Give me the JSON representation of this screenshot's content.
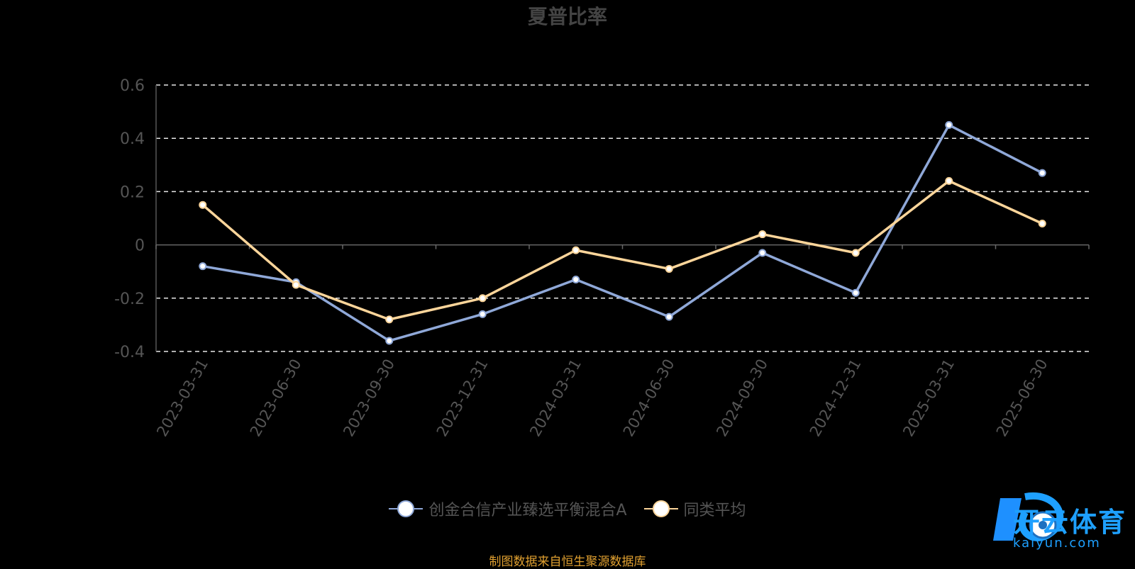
{
  "chart_data": {
    "type": "line",
    "title": "夏普比率",
    "categories": [
      "2023-03-31",
      "2023-06-30",
      "2023-09-30",
      "2023-12-31",
      "2024-03-31",
      "2024-06-30",
      "2024-09-30",
      "2024-12-31",
      "2025-03-31",
      "2025-06-30"
    ],
    "ylim": [
      -0.4,
      0.6
    ],
    "yticks": [
      "0.6",
      "0.4",
      "0.2",
      "0",
      "-0.2",
      "-0.4"
    ],
    "ytick_values": [
      0.6,
      0.4,
      0.2,
      0,
      -0.2,
      -0.4
    ],
    "grid": true,
    "legend_position": "bottom",
    "series": [
      {
        "name": "创金合信产业臻选平衡混合A",
        "color": "#8fa8d8",
        "values": [
          -0.08,
          -0.14,
          -0.36,
          -0.26,
          -0.13,
          -0.27,
          -0.03,
          -0.18,
          0.45,
          0.27
        ]
      },
      {
        "name": "同类平均",
        "color": "#fcd59a",
        "values": [
          0.15,
          -0.15,
          -0.28,
          -0.2,
          -0.02,
          -0.09,
          0.04,
          -0.03,
          0.24,
          0.08
        ]
      }
    ]
  },
  "source_note": "制图数据来自恒生聚源数据库",
  "watermark": {
    "brand": "开云体育",
    "domain": "kaiyun.com"
  }
}
